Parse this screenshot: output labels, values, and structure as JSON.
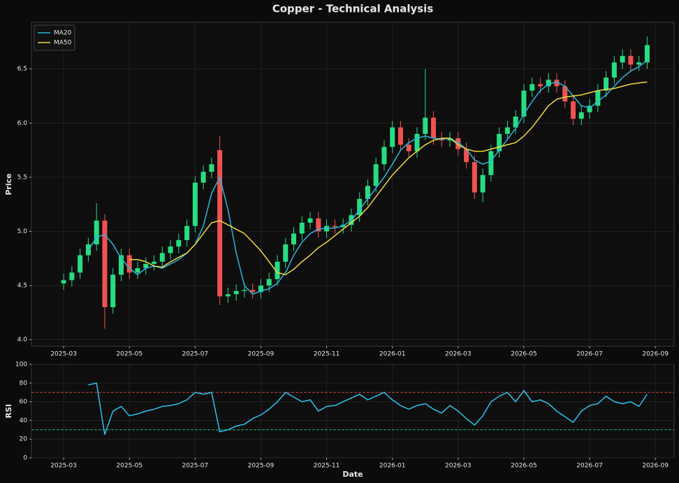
{
  "chart_data": [
    {
      "type": "candlestick",
      "title": "Copper - Technical Analysis",
      "ylabel": "Price",
      "x": [
        0,
        0.25,
        0.5,
        0.75,
        1,
        1.25,
        1.5,
        1.75,
        2,
        2.25,
        2.5,
        2.75,
        3,
        3.25,
        3.5,
        3.75,
        4,
        4.25,
        4.5,
        4.75,
        5,
        5.25,
        5.5,
        5.75,
        6,
        6.25,
        6.5,
        6.75,
        7,
        7.25,
        7.5,
        7.75,
        8,
        8.25,
        8.5,
        8.75,
        9,
        9.25,
        9.5,
        9.75,
        10,
        10.25,
        10.5,
        10.75,
        11,
        11.25,
        11.5,
        11.75,
        12,
        12.25,
        12.5,
        12.75,
        13,
        13.25,
        13.5,
        13.75,
        14,
        14.25,
        14.5,
        14.75,
        15,
        15.25,
        15.5,
        15.75,
        16,
        16.25,
        16.5,
        16.75,
        17,
        17.25,
        17.5,
        17.75
      ],
      "open": [
        4.52,
        4.55,
        4.62,
        4.78,
        4.88,
        5.1,
        4.3,
        4.6,
        4.78,
        4.62,
        4.66,
        4.7,
        4.72,
        4.8,
        4.86,
        4.92,
        5.05,
        5.45,
        5.55,
        5.75,
        4.4,
        4.42,
        4.45,
        4.46,
        4.44,
        4.5,
        4.56,
        4.72,
        4.88,
        4.98,
        5.08,
        5.12,
        5.0,
        5.05,
        5.04,
        5.06,
        5.15,
        5.3,
        5.42,
        5.62,
        5.78,
        5.96,
        5.8,
        5.74,
        5.9,
        6.05,
        5.86,
        5.84,
        5.86,
        5.76,
        5.64,
        5.36,
        5.52,
        5.74,
        5.9,
        5.96,
        6.06,
        6.3,
        6.36,
        6.34,
        6.4,
        6.34,
        6.2,
        6.04,
        6.1,
        6.16,
        6.3,
        6.42,
        6.56,
        6.62,
        6.54,
        6.56
      ],
      "high": [
        4.61,
        4.68,
        4.84,
        4.94,
        5.26,
        5.16,
        4.66,
        4.84,
        4.84,
        4.72,
        4.76,
        4.78,
        4.86,
        4.92,
        4.98,
        5.11,
        5.51,
        5.61,
        5.68,
        5.88,
        4.48,
        4.51,
        4.52,
        4.52,
        4.56,
        4.62,
        4.78,
        4.94,
        5.04,
        5.14,
        5.18,
        5.18,
        5.11,
        5.11,
        5.12,
        5.21,
        5.36,
        5.48,
        5.68,
        5.84,
        6.02,
        6.02,
        5.86,
        5.96,
        6.5,
        6.11,
        5.92,
        5.92,
        5.92,
        5.82,
        5.7,
        5.58,
        5.8,
        5.96,
        6.02,
        6.12,
        6.36,
        6.42,
        6.42,
        6.46,
        6.46,
        6.4,
        6.26,
        6.16,
        6.22,
        6.36,
        6.48,
        6.62,
        6.68,
        6.68,
        6.62,
        6.8
      ],
      "low": [
        4.46,
        4.49,
        4.56,
        4.72,
        4.82,
        4.1,
        4.24,
        4.54,
        4.56,
        4.56,
        4.6,
        4.64,
        4.66,
        4.74,
        4.8,
        4.86,
        4.99,
        5.39,
        5.49,
        4.32,
        4.34,
        4.36,
        4.39,
        4.38,
        4.38,
        4.44,
        4.5,
        4.66,
        4.82,
        4.92,
        5.02,
        4.94,
        4.94,
        4.98,
        4.98,
        5.0,
        5.09,
        5.24,
        5.36,
        5.56,
        5.72,
        5.74,
        5.68,
        5.68,
        5.84,
        5.8,
        5.78,
        5.78,
        5.7,
        5.58,
        5.3,
        5.27,
        5.46,
        5.68,
        5.84,
        5.9,
        6.0,
        6.24,
        6.28,
        6.28,
        6.28,
        6.14,
        5.98,
        5.98,
        6.04,
        6.1,
        6.24,
        6.36,
        6.5,
        6.48,
        6.48,
        6.5
      ],
      "close": [
        4.55,
        4.62,
        4.78,
        4.88,
        5.1,
        4.3,
        4.6,
        4.78,
        4.62,
        4.66,
        4.7,
        4.72,
        4.8,
        4.86,
        4.92,
        5.05,
        5.45,
        5.55,
        5.62,
        4.4,
        4.42,
        4.45,
        4.46,
        4.44,
        4.5,
        4.56,
        4.72,
        4.88,
        4.98,
        5.08,
        5.12,
        5.0,
        5.05,
        5.04,
        5.06,
        5.15,
        5.3,
        5.42,
        5.62,
        5.78,
        5.96,
        5.8,
        5.74,
        5.9,
        6.05,
        5.86,
        5.84,
        5.86,
        5.76,
        5.64,
        5.36,
        5.52,
        5.74,
        5.9,
        5.96,
        6.06,
        6.3,
        6.36,
        6.34,
        6.4,
        6.34,
        6.2,
        6.04,
        6.1,
        6.16,
        6.3,
        6.42,
        6.56,
        6.62,
        6.54,
        6.56,
        6.72
      ],
      "up_color": "#26de81",
      "down_color": "#ef5350",
      "series": [
        {
          "name": "MA20",
          "color": "#29b6e0",
          "values": [
            null,
            null,
            null,
            4.82,
            4.95,
            4.97,
            4.88,
            4.75,
            4.66,
            4.6,
            4.66,
            4.68,
            4.66,
            4.7,
            4.74,
            4.8,
            4.88,
            5.05,
            5.35,
            5.5,
            5.2,
            4.8,
            4.5,
            4.42,
            4.45,
            4.47,
            4.52,
            4.62,
            4.78,
            4.9,
            4.98,
            5.02,
            5.03,
            5.03,
            5.05,
            5.1,
            5.2,
            5.3,
            5.4,
            5.5,
            5.62,
            5.75,
            5.82,
            5.86,
            5.88,
            5.86,
            5.85,
            5.86,
            5.82,
            5.76,
            5.66,
            5.62,
            5.65,
            5.75,
            5.85,
            5.95,
            6.08,
            6.2,
            6.3,
            6.36,
            6.38,
            6.34,
            6.25,
            6.16,
            6.14,
            6.2,
            6.26,
            6.34,
            6.42,
            6.48,
            6.52,
            6.58
          ]
        },
        {
          "name": "MA50",
          "color": "#f1d93c",
          "values": [
            null,
            null,
            null,
            null,
            null,
            null,
            null,
            null,
            4.74,
            4.74,
            4.72,
            4.68,
            4.67,
            4.72,
            4.76,
            4.8,
            4.88,
            4.98,
            5.08,
            5.1,
            5.06,
            5.02,
            4.98,
            4.9,
            4.82,
            4.72,
            4.62,
            4.6,
            4.65,
            4.72,
            4.78,
            4.85,
            4.9,
            4.96,
            5.02,
            5.08,
            5.14,
            5.22,
            5.32,
            5.42,
            5.52,
            5.6,
            5.68,
            5.74,
            5.8,
            5.84,
            5.86,
            5.86,
            5.8,
            5.76,
            5.74,
            5.74,
            5.76,
            5.78,
            5.8,
            5.82,
            5.88,
            5.96,
            6.06,
            6.16,
            6.22,
            6.24,
            6.25,
            6.26,
            6.28,
            6.3,
            6.31,
            6.32,
            6.34,
            6.36,
            6.37,
            6.38
          ]
        }
      ],
      "legend": "upper left",
      "xlim": [
        -0.98,
        18.57
      ],
      "ylim": [
        3.94,
        6.93
      ],
      "xticks": [
        {
          "value": 0,
          "label": "2025-03"
        },
        {
          "value": 2,
          "label": "2025-05"
        },
        {
          "value": 4,
          "label": "2025-07"
        },
        {
          "value": 6,
          "label": "2025-09"
        },
        {
          "value": 8,
          "label": "2025-11"
        },
        {
          "value": 10,
          "label": "2026-01"
        },
        {
          "value": 12,
          "label": "2026-03"
        },
        {
          "value": 14,
          "label": "2026-05"
        },
        {
          "value": 16,
          "label": "2026-07"
        },
        {
          "value": 18,
          "label": "2026-09"
        }
      ],
      "yticks": [
        {
          "value": 4,
          "label": "4.0"
        },
        4.5,
        {
          "value": 5,
          "label": "5.0"
        },
        5.5,
        {
          "value": 6,
          "label": "6.0"
        },
        6.5
      ],
      "grid": true
    },
    {
      "type": "line",
      "ylabel": "RSI",
      "xlabel": "Date",
      "x": [
        0,
        0.25,
        0.5,
        0.75,
        1,
        1.25,
        1.5,
        1.75,
        2,
        2.25,
        2.5,
        2.75,
        3,
        3.25,
        3.5,
        3.75,
        4,
        4.25,
        4.5,
        4.75,
        5,
        5.25,
        5.5,
        5.75,
        6,
        6.25,
        6.5,
        6.75,
        7,
        7.25,
        7.5,
        7.75,
        8,
        8.25,
        8.5,
        8.75,
        9,
        9.25,
        9.5,
        9.75,
        10,
        10.25,
        10.5,
        10.75,
        11,
        11.25,
        11.5,
        11.75,
        12,
        12.25,
        12.5,
        12.75,
        13,
        13.25,
        13.5,
        13.75,
        14,
        14.25,
        14.5,
        14.75,
        15,
        15.25,
        15.5,
        15.75,
        16,
        16.25,
        16.5,
        16.75,
        17,
        17.25,
        17.5,
        17.75
      ],
      "values": [
        null,
        null,
        null,
        78,
        80,
        25,
        50,
        55,
        45,
        47,
        50,
        52,
        55,
        56,
        58,
        62,
        70,
        68,
        70,
        28,
        30,
        34,
        36,
        42,
        46,
        52,
        60,
        70,
        65,
        60,
        62,
        50,
        55,
        56,
        60,
        64,
        68,
        62,
        66,
        70,
        62,
        56,
        52,
        56,
        58,
        52,
        48,
        56,
        50,
        42,
        35,
        45,
        60,
        66,
        70,
        60,
        72,
        60,
        62,
        58,
        50,
        44,
        38,
        50,
        56,
        58,
        66,
        60,
        58,
        60,
        55,
        68
      ],
      "color": "#29c5ee",
      "reference_lines": [
        {
          "value": 70,
          "color": "#ef5350"
        },
        {
          "value": 30,
          "color": "#26de81"
        }
      ],
      "xlim": [
        -0.98,
        18.57
      ],
      "ylim": [
        0,
        100
      ],
      "xticks": [
        {
          "value": 0,
          "label": "2025-03"
        },
        {
          "value": 2,
          "label": "2025-05"
        },
        {
          "value": 4,
          "label": "2025-07"
        },
        {
          "value": 6,
          "label": "2025-09"
        },
        {
          "value": 8,
          "label": "2025-11"
        },
        {
          "value": 10,
          "label": "2026-01"
        },
        {
          "value": 12,
          "label": "2026-03"
        },
        {
          "value": 14,
          "label": "2026-05"
        },
        {
          "value": 16,
          "label": "2026-07"
        },
        {
          "value": 18,
          "label": "2026-09"
        }
      ],
      "yticks": [
        0,
        20,
        40,
        60,
        80,
        100
      ],
      "grid": true
    }
  ]
}
